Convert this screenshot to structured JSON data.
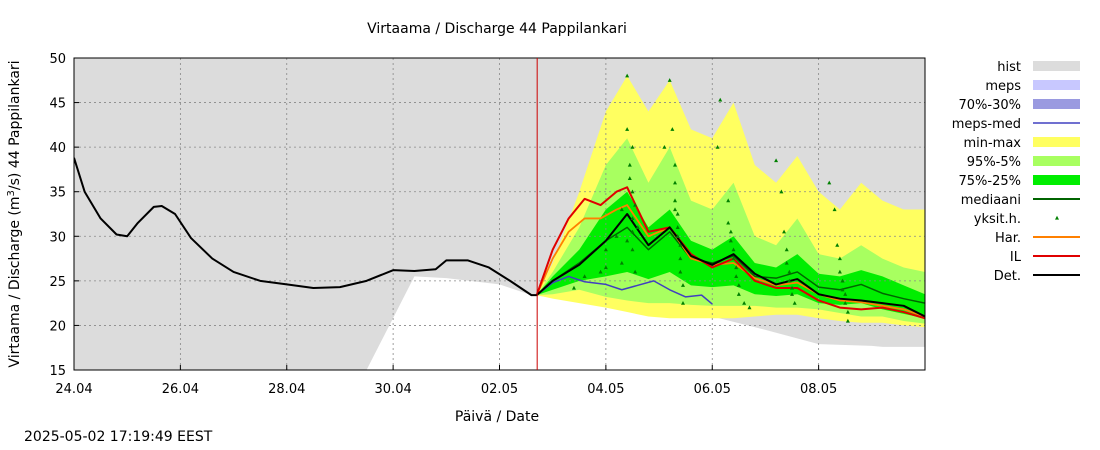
{
  "chart_data": {
    "type": "area",
    "title": "Virtaama / Discharge  44 Pappilankari",
    "xlabel": "Päivä / Date",
    "ylabel_main": "Virtaama / Discharge (m",
    "ylabel_sup": "3",
    "ylabel_tail": "/s)  44 Pappilankari",
    "ylim": [
      15,
      50
    ],
    "yticks": [
      15,
      20,
      25,
      30,
      35,
      40,
      45,
      50
    ],
    "x_range_days": [
      "24.04",
      "09.05 00:00"
    ],
    "xticks": [
      "24.04",
      "26.04",
      "28.04",
      "30.04",
      "02.05",
      "04.05",
      "06.05",
      "08.05"
    ],
    "grid": true,
    "forecast_start": "02.05 17:00",
    "colors": {
      "hist": "#dcdcdc",
      "meps": "#c8c8ff",
      "meps_70_30": "#9a9ae0",
      "meps_med": "#4040c0",
      "minmax": "#ffff60",
      "p95_5": "#a8ff60",
      "p75_25": "#00ee00",
      "mediaani": "#006400",
      "yksit": "#008000",
      "har": "#ff8000",
      "il": "#e00000",
      "det": "#000000",
      "now_line": "#cc0000"
    },
    "legend": [
      {
        "key": "hist",
        "label": "hist",
        "style": "box"
      },
      {
        "key": "meps",
        "label": "meps",
        "style": "box"
      },
      {
        "key": "meps_70_30",
        "label": "70%-30%",
        "style": "box"
      },
      {
        "key": "meps_med",
        "label": "meps-med",
        "style": "line"
      },
      {
        "key": "minmax",
        "label": "min-max",
        "style": "box"
      },
      {
        "key": "p95_5",
        "label": "95%-5%",
        "style": "box"
      },
      {
        "key": "p75_25",
        "label": "75%-25%",
        "style": "box"
      },
      {
        "key": "mediaani",
        "label": "mediaani",
        "style": "line"
      },
      {
        "key": "yksit",
        "label": "yksit.h.",
        "style": "dot"
      },
      {
        "key": "har",
        "label": "Har.",
        "style": "line"
      },
      {
        "key": "il",
        "label": "IL",
        "style": "line"
      },
      {
        "key": "det",
        "label": "Det.",
        "style": "line"
      }
    ],
    "series": [
      {
        "name": "hist",
        "kind": "band",
        "x": [
          0,
          5.5,
          6.4,
          7.0,
          8.0,
          8.6,
          9.5,
          10.5,
          11.5,
          12.0,
          13.0,
          14.0,
          15.0,
          16.0
        ],
        "upper": [
          50,
          50,
          50,
          50,
          50,
          50,
          50,
          50,
          50,
          50,
          50,
          50,
          50,
          50
        ],
        "lower": [
          15,
          15,
          15,
          15,
          15,
          15,
          15,
          15,
          15,
          15,
          15,
          15,
          15,
          15
        ]
      },
      {
        "name": "hist_white",
        "kind": "band",
        "x": [
          5.5,
          6.4,
          7.0,
          8.0,
          8.6,
          9.5,
          10.5,
          11.5,
          12.0,
          13.0,
          14.0,
          15.0,
          15.2,
          16.0
        ],
        "upper": [
          15,
          25.5,
          25.3,
          24.6,
          23.4,
          22.8,
          22.2,
          21.5,
          21.0,
          19.5,
          17.9,
          17.7,
          17.6,
          17.6
        ],
        "lower": [
          15,
          15,
          15,
          15,
          15,
          15,
          15,
          15,
          15,
          15,
          15,
          15,
          15,
          15
        ]
      },
      {
        "name": "min-max",
        "kind": "band",
        "x": [
          8.7,
          9.0,
          9.5,
          10.0,
          10.4,
          10.8,
          11.2,
          11.6,
          12.0,
          12.4,
          12.8,
          13.2,
          13.6,
          14.0,
          14.4,
          14.8,
          15.2,
          15.6,
          16.0
        ],
        "upper": [
          23.4,
          27,
          35,
          44,
          48,
          44,
          47.5,
          42,
          41,
          45,
          38,
          36,
          39,
          35,
          33,
          36,
          34,
          33,
          33
        ],
        "lower": [
          23.4,
          23.0,
          22.5,
          22.0,
          21.5,
          21.0,
          20.8,
          20.8,
          20.8,
          20.8,
          21.0,
          21.2,
          21.2,
          20.8,
          20.5,
          20.3,
          20.3,
          20.0,
          19.8
        ]
      },
      {
        "name": "95%-5%",
        "kind": "band",
        "x": [
          8.7,
          9.0,
          9.5,
          10.0,
          10.4,
          10.8,
          11.2,
          11.6,
          12.0,
          12.4,
          12.8,
          13.2,
          13.6,
          14.0,
          14.4,
          14.8,
          15.2,
          15.6,
          16.0
        ],
        "upper": [
          23.4,
          26,
          31,
          38,
          41,
          36,
          40,
          34,
          33,
          36,
          30,
          29,
          32,
          28,
          27.5,
          29,
          27.5,
          26.5,
          26
        ],
        "lower": [
          23.4,
          23.5,
          24.0,
          23.2,
          22.8,
          22.5,
          22.5,
          22.3,
          22.2,
          22.2,
          22.2,
          22.0,
          22.0,
          21.8,
          21.4,
          21.0,
          21.0,
          20.5,
          20.2
        ]
      },
      {
        "name": "75%-25%",
        "kind": "band",
        "x": [
          8.7,
          9.0,
          9.5,
          10.0,
          10.4,
          10.8,
          11.2,
          11.6,
          12.0,
          12.4,
          12.8,
          13.2,
          13.6,
          14.0,
          14.4,
          14.8,
          15.2,
          15.6,
          16.0
        ],
        "upper": [
          23.4,
          25.5,
          28.5,
          33,
          35,
          31,
          33,
          29.5,
          28.5,
          30,
          27,
          26.5,
          28,
          25.8,
          25.5,
          26.2,
          25.5,
          24.5,
          23.5
        ],
        "lower": [
          23.4,
          24.0,
          25.0,
          25.5,
          26.0,
          25.2,
          26.0,
          24.5,
          24.3,
          24.5,
          23.5,
          23.3,
          23.5,
          22.5,
          22.3,
          22.5,
          21.8,
          21.3,
          20.8
        ]
      },
      {
        "name": "mediaani",
        "kind": "line",
        "x": [
          8.7,
          9.0,
          9.5,
          10.0,
          10.4,
          10.8,
          11.2,
          11.6,
          12.0,
          12.4,
          12.8,
          13.2,
          13.6,
          14.0,
          14.4,
          14.8,
          15.2,
          15.6,
          16.0
        ],
        "y": [
          23.4,
          25.0,
          27.0,
          29.5,
          31.0,
          28.5,
          30.5,
          27.5,
          27.0,
          27.8,
          25.5,
          25.3,
          26.0,
          24.3,
          24.0,
          24.6,
          23.6,
          23.0,
          22.5
        ]
      },
      {
        "name": "meps-med",
        "kind": "line",
        "x": [
          8.7,
          9.0,
          9.3,
          9.6,
          10.0,
          10.3,
          10.6,
          10.9,
          11.2,
          11.5,
          11.8,
          12.0
        ],
        "y": [
          23.4,
          24.8,
          25.5,
          24.9,
          24.6,
          24.0,
          24.5,
          25.0,
          24.0,
          23.2,
          23.4,
          22.4
        ]
      },
      {
        "name": "Har.",
        "kind": "line",
        "x": [
          8.7,
          9.0,
          9.3,
          9.6,
          9.9,
          10.2,
          10.4,
          10.8,
          11.2,
          11.6,
          12.0,
          12.4,
          12.8,
          13.2,
          13.6,
          14.0,
          14.4,
          14.8,
          15.2,
          15.6,
          16.0
        ],
        "y": [
          23.4,
          27.5,
          30.5,
          32.0,
          32.0,
          33.0,
          33.5,
          30.0,
          31.0,
          27.5,
          26.8,
          27.0,
          25.3,
          24.5,
          24.8,
          23.5,
          22.8,
          22.6,
          22.2,
          21.8,
          21.0
        ]
      },
      {
        "name": "IL",
        "kind": "line",
        "x": [
          8.7,
          9.0,
          9.3,
          9.6,
          9.9,
          10.2,
          10.4,
          10.8,
          11.2,
          11.6,
          12.0,
          12.4,
          12.8,
          13.2,
          13.6,
          14.0,
          14.4,
          14.8,
          15.2,
          15.6,
          16.0
        ],
        "y": [
          23.4,
          28.5,
          32.0,
          34.2,
          33.5,
          35.0,
          35.5,
          30.5,
          31.0,
          28.0,
          26.5,
          27.5,
          25.0,
          24.2,
          24.2,
          22.8,
          22.0,
          21.8,
          22.0,
          21.5,
          20.8
        ]
      },
      {
        "name": "Det.",
        "kind": "line",
        "x": [
          0,
          0.2,
          0.5,
          0.8,
          1.0,
          1.2,
          1.5,
          1.65,
          1.9,
          2.2,
          2.6,
          3.0,
          3.5,
          4.0,
          4.5,
          5.0,
          5.5,
          6.0,
          6.4,
          6.8,
          7.0,
          7.4,
          7.8,
          8.2,
          8.6,
          8.7,
          9.0,
          9.5,
          10.0,
          10.4,
          10.8,
          11.2,
          11.6,
          12.0,
          12.4,
          12.8,
          13.2,
          13.6,
          14.0,
          14.4,
          14.8,
          15.2,
          15.6,
          16.0
        ],
        "y": [
          38.8,
          35.0,
          32.0,
          30.2,
          30.0,
          31.5,
          33.3,
          33.4,
          32.5,
          29.8,
          27.5,
          26.0,
          25.0,
          24.6,
          24.2,
          24.3,
          25.0,
          26.2,
          26.1,
          26.3,
          27.3,
          27.3,
          26.5,
          25.0,
          23.4,
          23.4,
          25.0,
          26.8,
          29.5,
          32.5,
          29.0,
          31.0,
          27.8,
          26.8,
          28.0,
          25.8,
          24.6,
          25.2,
          23.5,
          23.0,
          22.8,
          22.5,
          22.2,
          21.0
        ]
      }
    ],
    "yksit_points": [
      [
        9.4,
        24.2
      ],
      [
        9.6,
        25.5
      ],
      [
        9.9,
        26.0
      ],
      [
        10.0,
        28.5
      ],
      [
        10.0,
        26.5
      ],
      [
        10.2,
        30.0
      ],
      [
        10.3,
        33.0
      ],
      [
        10.3,
        27.0
      ],
      [
        10.4,
        48.0
      ],
      [
        10.4,
        42.0
      ],
      [
        10.45,
        38.0
      ],
      [
        10.5,
        35.0
      ],
      [
        10.5,
        32.0
      ],
      [
        10.5,
        30.5
      ],
      [
        10.5,
        28.5
      ],
      [
        10.55,
        26.0
      ],
      [
        10.45,
        36.5
      ],
      [
        10.5,
        40.0
      ],
      [
        10.55,
        33.5
      ],
      [
        10.6,
        31.0
      ],
      [
        10.4,
        29.5
      ],
      [
        11.1,
        40.0
      ],
      [
        11.2,
        47.5
      ],
      [
        11.25,
        42.0
      ],
      [
        11.3,
        38.0
      ],
      [
        11.3,
        36.0
      ],
      [
        11.3,
        34.0
      ],
      [
        11.35,
        32.5
      ],
      [
        11.35,
        31.0
      ],
      [
        11.35,
        30.0
      ],
      [
        11.4,
        29.0
      ],
      [
        11.4,
        27.5
      ],
      [
        11.4,
        26.0
      ],
      [
        11.45,
        24.5
      ],
      [
        11.45,
        22.5
      ],
      [
        11.3,
        33.0
      ],
      [
        12.1,
        40.0
      ],
      [
        12.15,
        45.3
      ],
      [
        12.3,
        34.0
      ],
      [
        12.3,
        31.5
      ],
      [
        12.35,
        30.5
      ],
      [
        12.35,
        29.5
      ],
      [
        12.4,
        28.5
      ],
      [
        12.4,
        27.5
      ],
      [
        12.45,
        26.5
      ],
      [
        12.45,
        25.5
      ],
      [
        12.5,
        24.5
      ],
      [
        12.5,
        23.5
      ],
      [
        12.6,
        22.5
      ],
      [
        12.7,
        22.0
      ],
      [
        13.2,
        38.5
      ],
      [
        13.3,
        35.0
      ],
      [
        13.35,
        30.5
      ],
      [
        13.4,
        28.5
      ],
      [
        13.4,
        27.0
      ],
      [
        13.45,
        26.0
      ],
      [
        13.45,
        25.0
      ],
      [
        13.5,
        24.2
      ],
      [
        13.5,
        23.5
      ],
      [
        13.55,
        22.5
      ],
      [
        14.2,
        36.0
      ],
      [
        14.3,
        33.0
      ],
      [
        14.35,
        29.0
      ],
      [
        14.4,
        27.5
      ],
      [
        14.4,
        26.0
      ],
      [
        14.45,
        25.0
      ],
      [
        14.45,
        24.0
      ],
      [
        14.5,
        23.5
      ],
      [
        14.5,
        22.5
      ],
      [
        14.55,
        21.5
      ],
      [
        14.55,
        20.5
      ]
    ]
  },
  "footer": {
    "timestamp": "2025-05-02 17:19:49 EEST"
  }
}
